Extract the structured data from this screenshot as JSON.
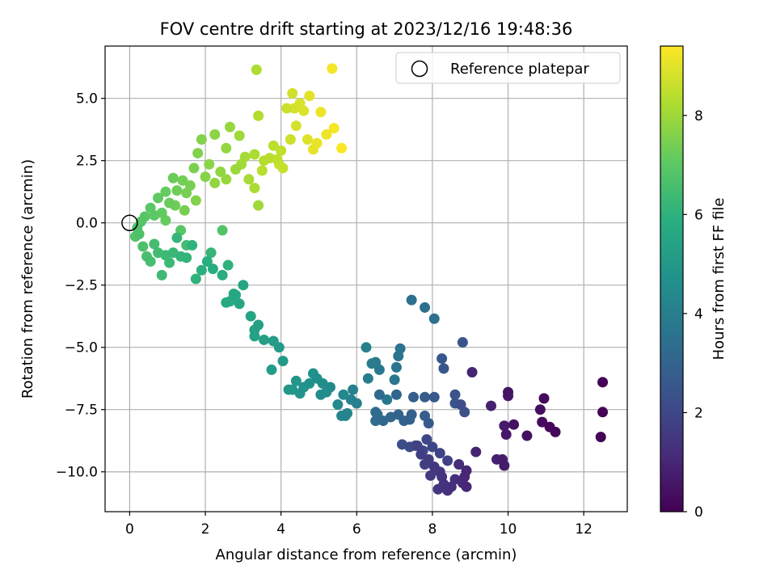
{
  "chart_data": {
    "type": "scatter",
    "title": "FOV centre drift starting at 2023/12/16 19:48:36",
    "xlabel": "Angular distance from reference (arcmin)",
    "ylabel": "Rotation from reference (arcmin)",
    "xlim": [
      -0.65,
      13.15
    ],
    "ylim": [
      -11.6,
      7.1
    ],
    "xticks": [
      0,
      2,
      4,
      6,
      8,
      10,
      12
    ],
    "xtick_labels": [
      "0",
      "2",
      "4",
      "6",
      "8",
      "10",
      "12"
    ],
    "yticks": [
      -10,
      -7.5,
      -5,
      -2.5,
      0,
      2.5,
      5
    ],
    "ytick_labels": [
      "−10.0",
      "−7.5",
      "−5.0",
      "−2.5",
      "0.0",
      "2.5",
      "5.0"
    ],
    "grid": true,
    "legend": {
      "position": "top-right",
      "label": "Reference platepar"
    },
    "reference_point": {
      "x": 0,
      "y": 0
    },
    "colorbar": {
      "label": "Hours from first FF file",
      "range": [
        0,
        9.4
      ],
      "ticks": [
        0,
        2,
        4,
        6,
        8
      ],
      "tick_labels": [
        "0",
        "2",
        "4",
        "6",
        "8"
      ],
      "colormap": "viridis"
    },
    "points": [
      [
        12.5,
        -6.4,
        0.05
      ],
      [
        12.5,
        -7.6,
        0.08
      ],
      [
        12.45,
        -8.6,
        0.1
      ],
      [
        11.25,
        -8.4,
        0.15
      ],
      [
        11.1,
        -8.2,
        0.2
      ],
      [
        10.95,
        -7.05,
        0.25
      ],
      [
        10.9,
        -8.0,
        0.3
      ],
      [
        10.85,
        -7.5,
        0.35
      ],
      [
        10.5,
        -8.55,
        0.4
      ],
      [
        10.15,
        -8.1,
        0.45
      ],
      [
        10.0,
        -6.8,
        0.5
      ],
      [
        10.0,
        -6.95,
        0.55
      ],
      [
        9.95,
        -8.5,
        0.6
      ],
      [
        9.9,
        -8.15,
        0.65
      ],
      [
        9.9,
        -9.75,
        0.7
      ],
      [
        9.85,
        -9.5,
        0.75
      ],
      [
        9.7,
        -9.5,
        0.8
      ],
      [
        9.55,
        -7.35,
        0.85
      ],
      [
        9.15,
        -9.2,
        0.9
      ],
      [
        9.05,
        -6.0,
        0.95
      ],
      [
        8.9,
        -9.95,
        1.0
      ],
      [
        8.9,
        -10.6,
        1.0
      ],
      [
        8.85,
        -10.2,
        1.05
      ],
      [
        8.8,
        -10.45,
        1.1
      ],
      [
        8.7,
        -9.7,
        1.15
      ],
      [
        8.6,
        -10.3,
        1.2
      ],
      [
        8.5,
        -10.6,
        1.25
      ],
      [
        8.4,
        -10.75,
        1.3
      ],
      [
        8.3,
        -10.5,
        1.35
      ],
      [
        8.25,
        -10.2,
        1.4
      ],
      [
        8.2,
        -10.0,
        1.45
      ],
      [
        8.15,
        -10.7,
        1.5
      ],
      [
        8.05,
        -9.8,
        1.55
      ],
      [
        7.95,
        -10.15,
        1.6
      ],
      [
        7.9,
        -9.5,
        1.65
      ],
      [
        7.8,
        -9.7,
        1.7
      ],
      [
        7.7,
        -9.3,
        1.75
      ],
      [
        7.6,
        -8.95,
        1.8
      ],
      [
        8.4,
        -9.55,
        1.85
      ],
      [
        8.2,
        -9.25,
        1.9
      ],
      [
        8.0,
        -9.0,
        1.95
      ],
      [
        7.85,
        -8.7,
        2.0
      ],
      [
        7.75,
        -9.15,
        2.05
      ],
      [
        7.55,
        -8.95,
        2.1
      ],
      [
        7.4,
        -9.0,
        2.15
      ],
      [
        7.2,
        -8.9,
        2.2
      ],
      [
        8.75,
        -7.3,
        2.25
      ],
      [
        8.85,
        -7.6,
        2.3
      ],
      [
        8.6,
        -6.9,
        2.35
      ],
      [
        8.6,
        -7.25,
        2.4
      ],
      [
        8.8,
        -4.8,
        2.45
      ],
      [
        8.3,
        -5.85,
        2.5
      ],
      [
        8.25,
        -5.45,
        2.55
      ],
      [
        8.05,
        -7.0,
        2.6
      ],
      [
        7.9,
        -8.05,
        2.65
      ],
      [
        7.8,
        -7.0,
        2.7
      ],
      [
        7.8,
        -7.75,
        2.75
      ],
      [
        7.5,
        -7.0,
        2.8
      ],
      [
        7.45,
        -7.7,
        2.85
      ],
      [
        7.4,
        -7.9,
        2.9
      ],
      [
        7.25,
        -7.95,
        2.95
      ],
      [
        7.1,
        -7.7,
        3.0
      ],
      [
        7.05,
        -6.9,
        3.05
      ],
      [
        6.9,
        -7.8,
        3.1
      ],
      [
        6.7,
        -7.95,
        3.15
      ],
      [
        6.6,
        -6.9,
        3.2
      ],
      [
        6.55,
        -7.7,
        3.25
      ],
      [
        6.5,
        -7.95,
        3.3
      ],
      [
        6.5,
        -7.6,
        3.35
      ],
      [
        8.05,
        -3.85,
        3.4
      ],
      [
        7.8,
        -3.4,
        3.45
      ],
      [
        7.45,
        -3.1,
        3.5
      ],
      [
        7.15,
        -5.05,
        3.55
      ],
      [
        7.1,
        -5.35,
        3.6
      ],
      [
        7.05,
        -5.8,
        3.65
      ],
      [
        7.0,
        -6.3,
        3.7
      ],
      [
        6.8,
        -7.1,
        3.75
      ],
      [
        6.6,
        -5.9,
        3.8
      ],
      [
        6.5,
        -5.6,
        3.85
      ],
      [
        6.4,
        -5.65,
        3.9
      ],
      [
        6.3,
        -6.25,
        3.95
      ],
      [
        6.25,
        -5.0,
        4.0
      ],
      [
        6.0,
        -7.25,
        4.05
      ],
      [
        5.9,
        -6.7,
        4.1
      ],
      [
        5.85,
        -7.1,
        4.15
      ],
      [
        5.75,
        -7.65,
        4.2
      ],
      [
        5.7,
        -7.75,
        4.25
      ],
      [
        5.6,
        -7.75,
        4.3
      ],
      [
        5.65,
        -6.9,
        4.35
      ],
      [
        5.5,
        -7.3,
        4.4
      ],
      [
        5.3,
        -6.6,
        4.45
      ],
      [
        5.2,
        -6.8,
        4.5
      ],
      [
        5.05,
        -6.9,
        4.55
      ],
      [
        5.1,
        -6.45,
        4.6
      ],
      [
        4.95,
        -6.25,
        4.65
      ],
      [
        4.85,
        -6.05,
        4.7
      ],
      [
        4.75,
        -6.45,
        4.75
      ],
      [
        4.6,
        -6.6,
        4.8
      ],
      [
        4.5,
        -6.85,
        4.85
      ],
      [
        4.4,
        -6.35,
        4.9
      ],
      [
        4.3,
        -6.7,
        4.95
      ],
      [
        4.2,
        -6.7,
        5.0
      ],
      [
        4.05,
        -5.55,
        5.05
      ],
      [
        3.95,
        -5.0,
        5.1
      ],
      [
        3.8,
        -4.75,
        5.15
      ],
      [
        3.75,
        -5.9,
        5.2
      ],
      [
        3.55,
        -4.7,
        5.25
      ],
      [
        3.4,
        -4.1,
        5.3
      ],
      [
        3.3,
        -4.3,
        5.35
      ],
      [
        3.3,
        -4.55,
        5.4
      ],
      [
        3.2,
        -3.75,
        5.45
      ],
      [
        3.0,
        -2.5,
        5.5
      ],
      [
        2.9,
        -3.25,
        5.55
      ],
      [
        2.8,
        -2.9,
        5.6
      ],
      [
        2.75,
        -2.85,
        5.65
      ],
      [
        2.65,
        -3.15,
        5.7
      ],
      [
        2.55,
        -3.2,
        5.75
      ],
      [
        2.45,
        -2.1,
        5.8
      ],
      [
        2.2,
        -1.85,
        5.85
      ],
      [
        2.05,
        -1.55,
        5.9
      ],
      [
        1.9,
        -1.9,
        5.95
      ],
      [
        1.75,
        -2.25,
        6.0
      ],
      [
        1.65,
        -0.9,
        6.05
      ],
      [
        1.5,
        -1.4,
        6.1
      ],
      [
        1.35,
        -1.35,
        6.15
      ],
      [
        1.25,
        -0.6,
        6.2
      ],
      [
        1.15,
        -1.2,
        6.25
      ],
      [
        1.05,
        -1.6,
        6.3
      ],
      [
        0.95,
        -1.3,
        6.35
      ],
      [
        0.85,
        -2.1,
        6.4
      ],
      [
        0.75,
        -1.2,
        6.45
      ],
      [
        0.65,
        -0.85,
        6.5
      ],
      [
        0.55,
        -1.55,
        6.55
      ],
      [
        0.45,
        -1.35,
        6.6
      ],
      [
        0.35,
        -0.95,
        6.65
      ],
      [
        0.25,
        -0.45,
        6.7
      ],
      [
        0.2,
        -0.2,
        6.75
      ],
      [
        0.15,
        -0.55,
        6.8
      ],
      [
        0.3,
        0.05,
        6.85
      ],
      [
        0.4,
        0.25,
        6.9
      ],
      [
        0.55,
        0.6,
        6.95
      ],
      [
        0.65,
        0.3,
        7.0
      ],
      [
        0.75,
        1.0,
        7.05
      ],
      [
        0.85,
        0.4,
        7.1
      ],
      [
        0.95,
        1.25,
        7.15
      ],
      [
        1.05,
        0.8,
        7.2
      ],
      [
        1.15,
        1.8,
        7.25
      ],
      [
        1.25,
        1.3,
        7.3
      ],
      [
        1.4,
        1.7,
        7.35
      ],
      [
        1.5,
        1.2,
        7.4
      ],
      [
        1.6,
        1.5,
        7.45
      ],
      [
        1.7,
        2.2,
        7.5
      ],
      [
        1.8,
        2.8,
        7.55
      ],
      [
        1.9,
        3.35,
        7.6
      ],
      [
        2.0,
        1.85,
        7.65
      ],
      [
        2.1,
        2.35,
        7.7
      ],
      [
        2.25,
        3.55,
        7.75
      ],
      [
        2.4,
        2.05,
        7.8
      ],
      [
        2.55,
        3.0,
        7.85
      ],
      [
        2.65,
        3.85,
        7.9
      ],
      [
        2.8,
        2.15,
        7.95
      ],
      [
        2.9,
        3.5,
        8.0
      ],
      [
        2.95,
        2.35,
        8.05
      ],
      [
        3.05,
        2.65,
        8.1
      ],
      [
        3.15,
        1.75,
        8.15
      ],
      [
        3.3,
        2.75,
        8.2
      ],
      [
        3.35,
        6.15,
        8.25
      ],
      [
        3.4,
        4.3,
        8.3
      ],
      [
        3.55,
        2.5,
        8.35
      ],
      [
        3.7,
        2.6,
        8.4
      ],
      [
        3.8,
        3.1,
        8.45
      ],
      [
        3.9,
        2.55,
        8.5
      ],
      [
        4.0,
        2.9,
        8.55
      ],
      [
        4.05,
        2.2,
        8.6
      ],
      [
        4.15,
        4.6,
        8.65
      ],
      [
        4.25,
        3.35,
        8.7
      ],
      [
        4.3,
        5.2,
        8.75
      ],
      [
        4.4,
        3.9,
        8.8
      ],
      [
        4.5,
        4.8,
        8.85
      ],
      [
        4.6,
        4.5,
        8.9
      ],
      [
        4.7,
        3.35,
        8.95
      ],
      [
        4.75,
        5.1,
        9.0
      ],
      [
        4.85,
        2.95,
        9.05
      ],
      [
        4.95,
        3.2,
        9.1
      ],
      [
        5.05,
        4.45,
        9.15
      ],
      [
        5.2,
        3.55,
        9.2
      ],
      [
        5.35,
        6.2,
        9.25
      ],
      [
        5.4,
        3.8,
        9.3
      ],
      [
        5.6,
        3.0,
        9.35
      ],
      [
        4.35,
        4.6,
        8.8
      ],
      [
        3.95,
        2.35,
        8.6
      ],
      [
        3.5,
        2.1,
        8.4
      ],
      [
        3.3,
        1.4,
        8.2
      ],
      [
        3.4,
        0.7,
        8.0
      ],
      [
        2.55,
        1.75,
        7.9
      ],
      [
        2.25,
        1.6,
        7.8
      ],
      [
        1.75,
        0.9,
        7.6
      ],
      [
        1.45,
        0.5,
        7.4
      ],
      [
        1.2,
        0.7,
        7.3
      ],
      [
        0.95,
        0.1,
        7.15
      ],
      [
        1.35,
        -0.3,
        6.9
      ],
      [
        2.45,
        -0.3,
        6.8
      ],
      [
        1.5,
        -0.9,
        6.5
      ],
      [
        2.15,
        -1.2,
        6.2
      ],
      [
        2.6,
        -1.7,
        6.0
      ]
    ]
  }
}
